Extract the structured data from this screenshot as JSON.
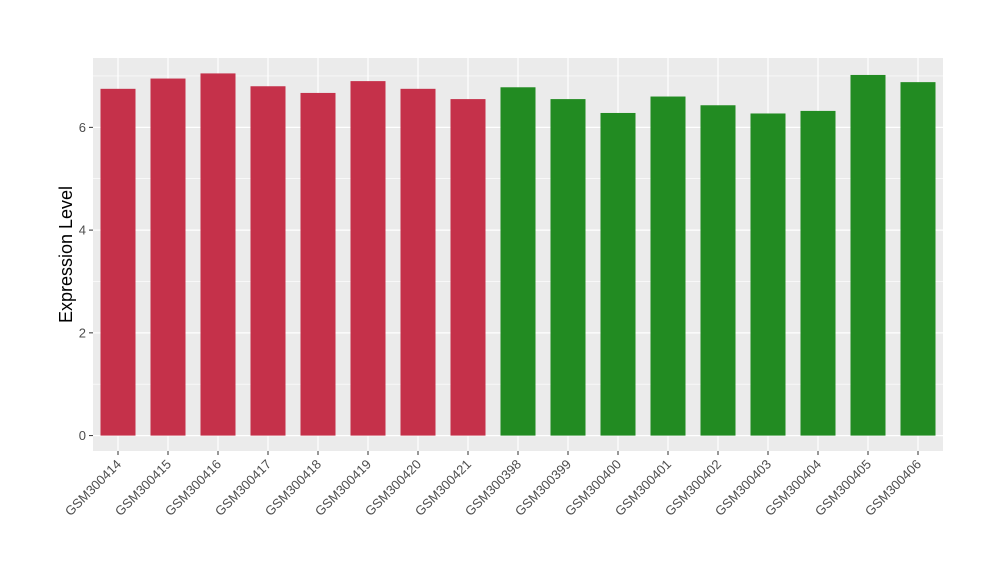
{
  "chart_data": {
    "type": "bar",
    "title": "",
    "xlabel": "",
    "ylabel": "Expression Level",
    "ylim": [
      -0.3,
      7.35
    ],
    "yticks": [
      0,
      2,
      4,
      6
    ],
    "grid": true,
    "legend": "none",
    "panel_color": "#ebebeb",
    "group_colors": [
      "#c5314a",
      "#228b22"
    ],
    "categories": [
      "GSM300414",
      "GSM300415",
      "GSM300416",
      "GSM300417",
      "GSM300418",
      "GSM300419",
      "GSM300420",
      "GSM300421",
      "GSM300398",
      "GSM300399",
      "GSM300400",
      "GSM300401",
      "GSM300402",
      "GSM300403",
      "GSM300404",
      "GSM300405",
      "GSM300406"
    ],
    "values": [
      6.75,
      6.95,
      7.05,
      6.8,
      6.67,
      6.9,
      6.75,
      6.55,
      6.78,
      6.55,
      6.28,
      6.6,
      6.43,
      6.27,
      6.32,
      7.02,
      6.88
    ],
    "bar_groups": [
      0,
      0,
      0,
      0,
      0,
      0,
      0,
      0,
      1,
      1,
      1,
      1,
      1,
      1,
      1,
      1,
      1
    ]
  }
}
